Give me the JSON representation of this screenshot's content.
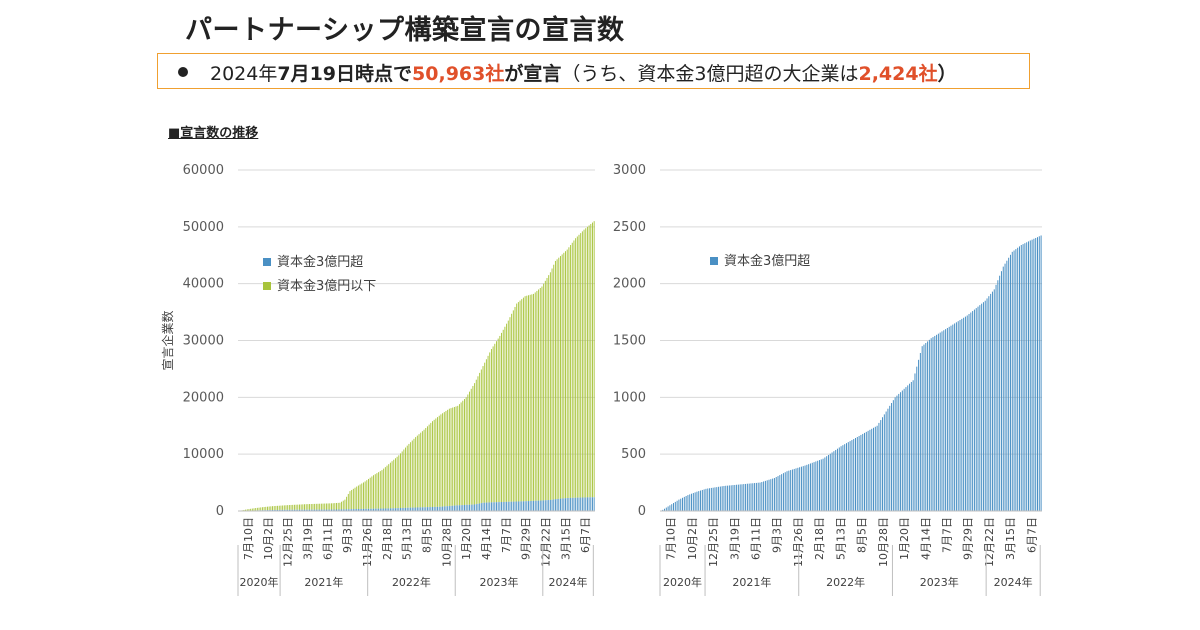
{
  "header": {
    "title": "パートナーシップ構築宣言の宣言数",
    "summary": {
      "date_prefix": "2024年",
      "date": "7月19日時点で",
      "count": "50,963社",
      "declared": "が宣言",
      "paren_open": "（うち、資本金3億円超の大企業は",
      "large_count": "2,424社",
      "paren_close": "）"
    },
    "subheading": "■宣言数の推移"
  },
  "colors": {
    "large": "#4a90c4",
    "small": "#a8c43c",
    "axis": "#bfbfbf",
    "grid": "#d9d9d9",
    "highlight": "#e0502a",
    "frame": "#f0a030"
  },
  "chart_data": [
    {
      "type": "bar",
      "stacked": true,
      "ylabel": "宣言企業数",
      "ylim": [
        0,
        60000
      ],
      "yticks": [
        "0",
        "10000",
        "20000",
        "30000",
        "40000",
        "50000",
        "60000"
      ],
      "legend": [
        "資本金3億円超",
        "資本金3億円以下"
      ],
      "x_tick_labels": [
        "7月10日",
        "10月2日",
        "12月25日",
        "3月19日",
        "6月11日",
        "9月3日",
        "11月26日",
        "2月18日",
        "5月13日",
        "8月5日",
        "10月28日",
        "1月20日",
        "4月14日",
        "7月7日",
        "9月29日",
        "12月22日",
        "3月15日",
        "6月7日"
      ],
      "year_labels": [
        "2020年",
        "2021年",
        "2022年",
        "2023年",
        "2024年"
      ],
      "year_breaks": [
        0,
        25,
        77,
        129,
        181,
        211
      ],
      "total_anchors": [
        [
          0,
          0
        ],
        [
          5,
          300
        ],
        [
          10,
          520
        ],
        [
          15,
          700
        ],
        [
          20,
          850
        ],
        [
          25,
          950
        ],
        [
          30,
          1050
        ],
        [
          35,
          1120
        ],
        [
          40,
          1200
        ],
        [
          45,
          1250
        ],
        [
          50,
          1300
        ],
        [
          55,
          1350
        ],
        [
          60,
          1450
        ],
        [
          63,
          2000
        ],
        [
          66,
          3500
        ],
        [
          70,
          4300
        ],
        [
          75,
          5200
        ],
        [
          80,
          6300
        ],
        [
          85,
          7200
        ],
        [
          90,
          8500
        ],
        [
          95,
          9800
        ],
        [
          100,
          11500
        ],
        [
          105,
          13000
        ],
        [
          110,
          14300
        ],
        [
          115,
          15800
        ],
        [
          120,
          17000
        ],
        [
          125,
          18000
        ],
        [
          130,
          18500
        ],
        [
          135,
          20000
        ],
        [
          140,
          22500
        ],
        [
          145,
          25500
        ],
        [
          150,
          28500
        ],
        [
          155,
          30800
        ],
        [
          160,
          33500
        ],
        [
          165,
          36500
        ],
        [
          170,
          37800
        ],
        [
          175,
          38200
        ],
        [
          180,
          39500
        ],
        [
          185,
          42000
        ],
        [
          188,
          44000
        ],
        [
          195,
          46000
        ],
        [
          200,
          48000
        ],
        [
          205,
          49500
        ],
        [
          211,
          51000
        ]
      ],
      "large_anchors": [
        [
          0,
          0
        ],
        [
          5,
          50
        ],
        [
          10,
          100
        ],
        [
          15,
          140
        ],
        [
          20,
          170
        ],
        [
          25,
          195
        ],
        [
          35,
          220
        ],
        [
          45,
          235
        ],
        [
          55,
          250
        ],
        [
          63,
          290
        ],
        [
          70,
          350
        ],
        [
          80,
          400
        ],
        [
          90,
          460
        ],
        [
          100,
          570
        ],
        [
          110,
          660
        ],
        [
          120,
          750
        ],
        [
          130,
          1000
        ],
        [
          140,
          1150
        ],
        [
          145,
          1450
        ],
        [
          150,
          1520
        ],
        [
          160,
          1620
        ],
        [
          170,
          1720
        ],
        [
          180,
          1850
        ],
        [
          185,
          1950
        ],
        [
          190,
          2150
        ],
        [
          195,
          2280
        ],
        [
          200,
          2340
        ],
        [
          205,
          2380
        ],
        [
          211,
          2424
        ]
      ]
    },
    {
      "type": "bar",
      "ylim": [
        0,
        3000
      ],
      "yticks": [
        "0",
        "500",
        "1000",
        "1500",
        "2000",
        "2500",
        "3000"
      ],
      "legend": [
        "資本金3億円超"
      ],
      "x_tick_labels": [
        "7月10日",
        "10月2日",
        "12月25日",
        "3月19日",
        "6月11日",
        "9月3日",
        "11月26日",
        "2月18日",
        "5月13日",
        "8月5日",
        "10月28日",
        "1月20日",
        "4月14日",
        "7月7日",
        "9月29日",
        "12月22日",
        "3月15日",
        "6月7日"
      ],
      "year_labels": [
        "2020年",
        "2021年",
        "2022年",
        "2023年",
        "2024年"
      ],
      "year_breaks": [
        0,
        25,
        77,
        129,
        181,
        211
      ]
    }
  ]
}
